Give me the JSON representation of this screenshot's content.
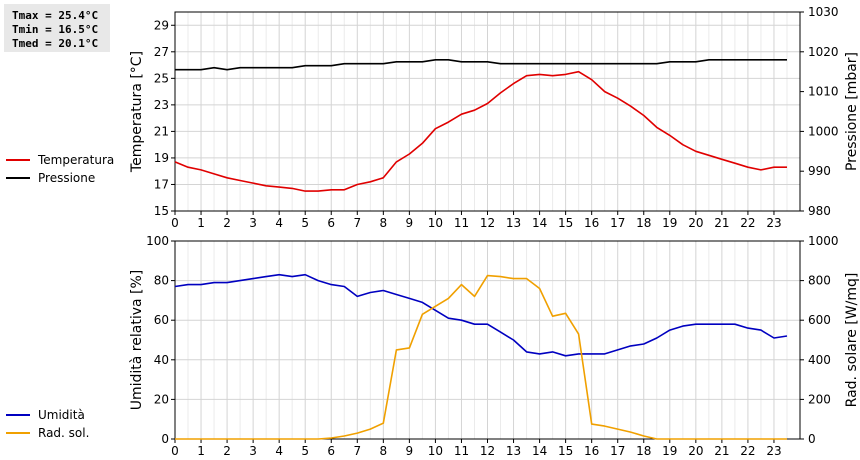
{
  "stats": {
    "tmax": "Tmax = 25.4°C",
    "tmin": "Tmin = 16.5°C",
    "tmed": "Tmed = 20.1°C"
  },
  "chart_data": [
    {
      "type": "line",
      "x_ticks": [
        "0",
        "1",
        "2",
        "3",
        "4",
        "5",
        "6",
        "7",
        "8",
        "9",
        "10",
        "11",
        "12",
        "13",
        "14",
        "15",
        "16",
        "17",
        "18",
        "19",
        "20",
        "21",
        "22",
        "23"
      ],
      "xlim": [
        0,
        24
      ],
      "ylabel": "Temperatura [°C]",
      "ylim": [
        15,
        30
      ],
      "y_ticks": [
        "15",
        "17",
        "19",
        "21",
        "23",
        "25",
        "27",
        "29"
      ],
      "ylabel_right": "Pressione [mbar]",
      "ylim_right": [
        980,
        1030
      ],
      "y_ticks_right": [
        "980",
        "990",
        "1000",
        "1010",
        "1020",
        "1030"
      ],
      "grid": true,
      "legend_position": "left",
      "series": [
        {
          "name": "Temperatura",
          "axis": "left",
          "color": "#e00000",
          "x": [
            0,
            0.5,
            1,
            1.5,
            2,
            2.5,
            3,
            3.5,
            4,
            4.5,
            5,
            5.5,
            6,
            6.5,
            7,
            7.5,
            8,
            8.5,
            9,
            9.5,
            10,
            10.5,
            11,
            11.5,
            12,
            12.5,
            13,
            13.5,
            14,
            14.5,
            15,
            15.5,
            16,
            16.5,
            17,
            17.5,
            18,
            18.5,
            19,
            19.5,
            20,
            20.5,
            21,
            21.5,
            22,
            22.5,
            23,
            23.5
          ],
          "values": [
            18.7,
            18.3,
            18.1,
            17.8,
            17.5,
            17.3,
            17.1,
            16.9,
            16.8,
            16.7,
            16.5,
            16.5,
            16.6,
            16.6,
            17.0,
            17.2,
            17.5,
            18.7,
            19.3,
            20.1,
            21.2,
            21.7,
            22.3,
            22.6,
            23.1,
            23.9,
            24.6,
            25.2,
            25.3,
            25.2,
            25.3,
            25.5,
            24.9,
            24.0,
            23.5,
            22.9,
            22.2,
            21.3,
            20.7,
            20.0,
            19.5,
            19.2,
            18.9,
            18.6,
            18.3,
            18.1,
            18.3,
            18.3
          ]
        },
        {
          "name": "Pressione",
          "axis": "right",
          "color": "#000000",
          "x": [
            0,
            0.5,
            1,
            1.5,
            2,
            2.5,
            3,
            3.5,
            4,
            4.5,
            5,
            5.5,
            6,
            6.5,
            7,
            7.5,
            8,
            8.5,
            9,
            9.5,
            10,
            10.5,
            11,
            11.5,
            12,
            12.5,
            13,
            13.5,
            14,
            14.5,
            15,
            15.5,
            16,
            16.5,
            17,
            17.5,
            18,
            18.5,
            19,
            19.5,
            20,
            20.5,
            21,
            21.5,
            22,
            22.5,
            23,
            23.5
          ],
          "values": [
            1015.5,
            1015.5,
            1015.5,
            1016.0,
            1015.5,
            1016.0,
            1016.0,
            1016.0,
            1016.0,
            1016.0,
            1016.5,
            1016.5,
            1016.5,
            1017.0,
            1017.0,
            1017.0,
            1017.0,
            1017.5,
            1017.5,
            1017.5,
            1018.0,
            1018.0,
            1017.5,
            1017.5,
            1017.5,
            1017.0,
            1017.0,
            1017.0,
            1017.0,
            1017.0,
            1017.0,
            1017.0,
            1017.0,
            1017.0,
            1017.0,
            1017.0,
            1017.0,
            1017.0,
            1017.5,
            1017.5,
            1017.5,
            1018.0,
            1018.0,
            1018.0,
            1018.0,
            1018.0,
            1018.0,
            1018.0
          ]
        }
      ]
    },
    {
      "type": "line",
      "x_ticks": [
        "0",
        "1",
        "2",
        "3",
        "4",
        "5",
        "6",
        "7",
        "8",
        "9",
        "10",
        "11",
        "12",
        "13",
        "14",
        "15",
        "16",
        "17",
        "18",
        "19",
        "20",
        "21",
        "22",
        "23"
      ],
      "xlim": [
        0,
        24
      ],
      "ylabel": "Umidità relativa [%]",
      "ylim": [
        0,
        100
      ],
      "y_ticks": [
        "0",
        "20",
        "40",
        "60",
        "80",
        "100"
      ],
      "ylabel_right": "Rad. solare [W/mq]",
      "ylim_right": [
        0,
        1000
      ],
      "y_ticks_right": [
        "0",
        "200",
        "400",
        "600",
        "800",
        "1000"
      ],
      "grid": true,
      "legend_position": "left",
      "series": [
        {
          "name": "Umidità",
          "axis": "left",
          "color": "#0000c0",
          "x": [
            0,
            0.5,
            1,
            1.5,
            2,
            2.5,
            3,
            3.5,
            4,
            4.5,
            5,
            5.5,
            6,
            6.5,
            7,
            7.5,
            8,
            8.5,
            9,
            9.5,
            10,
            10.5,
            11,
            11.5,
            12,
            12.5,
            13,
            13.5,
            14,
            14.5,
            15,
            15.5,
            16,
            16.5,
            17,
            17.5,
            18,
            18.5,
            19,
            19.5,
            20,
            20.5,
            21,
            21.5,
            22,
            22.5,
            23,
            23.5
          ],
          "values": [
            77,
            78,
            78,
            79,
            79,
            80,
            81,
            82,
            83,
            82,
            83,
            80,
            78,
            77,
            72,
            74,
            75,
            73,
            71,
            69,
            65,
            61,
            60,
            58,
            58,
            54,
            50,
            44,
            43,
            44,
            42,
            43,
            43,
            43,
            45,
            47,
            48,
            51,
            55,
            57,
            58,
            58,
            58,
            58,
            56,
            55,
            51,
            52
          ]
        },
        {
          "name": "Rad. sol.",
          "axis": "right",
          "color": "#f0a000",
          "x": [
            0,
            0.5,
            1,
            1.5,
            2,
            2.5,
            3,
            3.5,
            4,
            4.5,
            5,
            5.5,
            6,
            6.5,
            7,
            7.5,
            8,
            8.5,
            9,
            9.5,
            10,
            10.5,
            11,
            11.5,
            12,
            12.5,
            13,
            13.5,
            14,
            14.5,
            15,
            15.5,
            16,
            16.5,
            17,
            17.5,
            18,
            18.5,
            19,
            19.5,
            20,
            20.5,
            21,
            21.5,
            22,
            22.5,
            23,
            23.5
          ],
          "values": [
            0,
            0,
            0,
            0,
            0,
            0,
            0,
            0,
            0,
            0,
            0,
            0,
            5,
            15,
            30,
            50,
            80,
            450,
            460,
            630,
            670,
            710,
            780,
            720,
            825,
            820,
            810,
            810,
            760,
            620,
            635,
            530,
            75,
            65,
            50,
            35,
            15,
            0,
            0,
            0,
            0,
            0,
            0,
            0,
            0,
            0,
            0,
            0
          ]
        }
      ]
    }
  ]
}
